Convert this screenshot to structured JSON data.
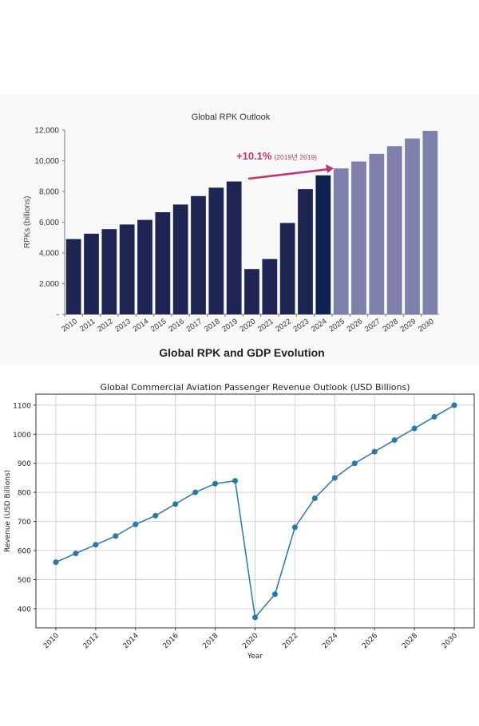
{
  "chart_data": [
    {
      "type": "bar",
      "title": "Global RPK Outlook",
      "subtitle": "Global RPK and GDP Evolution",
      "ylabel": "RPKs (billions)",
      "xlabel": "",
      "ylim": [
        0,
        12000
      ],
      "yticks": [
        0,
        2000,
        4000,
        6000,
        8000,
        10000,
        12000
      ],
      "ytick_labels": [
        "-",
        "2,000",
        "4,000",
        "6,000",
        "8,000",
        "10,000",
        "12,000"
      ],
      "categories": [
        "2010",
        "2011",
        "2012",
        "2013",
        "2014",
        "2015",
        "2016",
        "2017",
        "2018",
        "2019",
        "2020",
        "2021",
        "2022",
        "2023",
        "2024",
        "2025",
        "2026",
        "2027",
        "2028",
        "2029",
        "2030"
      ],
      "values": [
        4900,
        5250,
        5550,
        5850,
        6150,
        6650,
        7150,
        7700,
        8250,
        8650,
        2950,
        3600,
        5950,
        8150,
        9050,
        9500,
        9950,
        10450,
        10950,
        11450,
        11950
      ],
      "forecast_from": "2025",
      "annotation": {
        "big": "+10.1%",
        "small": "(2019년 2019)"
      },
      "colors": {
        "actual": "#1f2552",
        "current": "#0f2350",
        "forecast": "#7c80aa",
        "arrow": "#c2336a"
      },
      "grid": false
    },
    {
      "type": "line",
      "title": "Global Commercial Aviation Passenger Revenue Outlook (USD Billions)",
      "xlabel": "Year",
      "ylabel": "Revenue (USD Billions)",
      "x": [
        2010,
        2011,
        2012,
        2013,
        2014,
        2015,
        2016,
        2017,
        2018,
        2019,
        2020,
        2021,
        2022,
        2023,
        2024,
        2025,
        2026,
        2027,
        2028,
        2029,
        2030
      ],
      "y": [
        560,
        590,
        620,
        650,
        690,
        720,
        760,
        800,
        830,
        840,
        370,
        450,
        680,
        780,
        850,
        900,
        940,
        980,
        1020,
        1060,
        1100
      ],
      "xlim": [
        2009,
        2031
      ],
      "ylim": [
        334,
        1138
      ],
      "xticks": [
        2010,
        2012,
        2014,
        2016,
        2018,
        2020,
        2022,
        2024,
        2026,
        2028,
        2030
      ],
      "yticks": [
        400,
        500,
        600,
        700,
        800,
        900,
        1000,
        1100
      ],
      "color": "#2a78a8",
      "grid": true,
      "marker": "circle"
    }
  ]
}
